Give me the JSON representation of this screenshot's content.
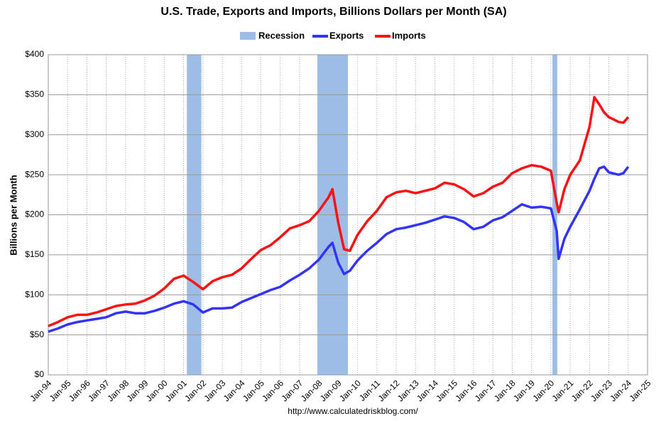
{
  "chart_data": {
    "type": "line",
    "title": "U.S. Trade, Exports and Imports, Billions Dollars per Month (SA)",
    "y_label": "Billions per Month",
    "source": "http://www.calculatedriskblog.com/",
    "recessions": {
      "name": "Recession",
      "color": "#9dbde6",
      "periods": [
        [
          2001.17,
          2001.92
        ],
        [
          2007.92,
          2009.5
        ],
        [
          2020.08,
          2020.33
        ]
      ]
    },
    "x": [
      1994.0,
      1994.5,
      1995.0,
      1995.5,
      1996.0,
      1996.5,
      1997.0,
      1997.5,
      1998.0,
      1998.5,
      1999.0,
      1999.5,
      2000.0,
      2000.5,
      2001.0,
      2001.5,
      2002.0,
      2002.5,
      2003.0,
      2003.5,
      2004.0,
      2004.5,
      2005.0,
      2005.5,
      2006.0,
      2006.5,
      2007.0,
      2007.5,
      2008.0,
      2008.5,
      2008.7,
      2009.0,
      2009.3,
      2009.6,
      2010.0,
      2010.5,
      2011.0,
      2011.5,
      2012.0,
      2012.5,
      2013.0,
      2013.5,
      2014.0,
      2014.5,
      2015.0,
      2015.5,
      2016.0,
      2016.5,
      2017.0,
      2017.5,
      2018.0,
      2018.5,
      2019.0,
      2019.5,
      2020.0,
      2020.3,
      2020.4,
      2020.7,
      2021.0,
      2021.5,
      2022.0,
      2022.25,
      2022.5,
      2022.75,
      2023.0,
      2023.5,
      2023.75,
      2024.0
    ],
    "series": [
      {
        "name": "Exports",
        "color": "#3333ff",
        "values": [
          54,
          58,
          63,
          66,
          68,
          70,
          72,
          77,
          79,
          77,
          77,
          80,
          84,
          89,
          92,
          88,
          78,
          83,
          83,
          84,
          91,
          96,
          101,
          106,
          110,
          118,
          125,
          133,
          144,
          160,
          165,
          140,
          126,
          130,
          143,
          155,
          165,
          176,
          182,
          184,
          187,
          190,
          194,
          198,
          196,
          191,
          182,
          185,
          193,
          197,
          205,
          213,
          209,
          210,
          208,
          180,
          145,
          170,
          185,
          207,
          230,
          245,
          258,
          260,
          253,
          250,
          252,
          260
        ]
      },
      {
        "name": "Imports",
        "color": "#ff1111",
        "values": [
          61,
          66,
          72,
          75,
          75,
          78,
          82,
          86,
          88,
          89,
          93,
          99,
          108,
          120,
          124,
          116,
          107,
          117,
          122,
          125,
          133,
          145,
          156,
          162,
          172,
          183,
          187,
          192,
          205,
          222,
          232,
          190,
          157,
          155,
          175,
          192,
          205,
          222,
          228,
          230,
          227,
          230,
          233,
          240,
          238,
          232,
          223,
          227,
          235,
          240,
          252,
          258,
          262,
          260,
          255,
          215,
          203,
          232,
          250,
          268,
          310,
          347,
          338,
          328,
          322,
          316,
          315,
          322
        ]
      }
    ],
    "xlim": [
      1994,
      2025
    ],
    "xticks": [
      {
        "value": 1994,
        "label": "Jan-94"
      },
      {
        "value": 1995,
        "label": "Jan-95"
      },
      {
        "value": 1996,
        "label": "Jan-96"
      },
      {
        "value": 1997,
        "label": "Jan-97"
      },
      {
        "value": 1998,
        "label": "Jan-98"
      },
      {
        "value": 1999,
        "label": "Jan-99"
      },
      {
        "value": 2000,
        "label": "Jan-00"
      },
      {
        "value": 2001,
        "label": "Jan-01"
      },
      {
        "value": 2002,
        "label": "Jan-02"
      },
      {
        "value": 2003,
        "label": "Jan-03"
      },
      {
        "value": 2004,
        "label": "Jan-04"
      },
      {
        "value": 2005,
        "label": "Jan-05"
      },
      {
        "value": 2006,
        "label": "Jan-06"
      },
      {
        "value": 2007,
        "label": "Jan-07"
      },
      {
        "value": 2008,
        "label": "Jan-08"
      },
      {
        "value": 2009,
        "label": "Jan-09"
      },
      {
        "value": 2010,
        "label": "Jan-10"
      },
      {
        "value": 2011,
        "label": "Jan-11"
      },
      {
        "value": 2012,
        "label": "Jan-12"
      },
      {
        "value": 2013,
        "label": "Jan-13"
      },
      {
        "value": 2014,
        "label": "Jan-14"
      },
      {
        "value": 2015,
        "label": "Jan-15"
      },
      {
        "value": 2016,
        "label": "Jan-16"
      },
      {
        "value": 2017,
        "label": "Jan-17"
      },
      {
        "value": 2018,
        "label": "Jan-18"
      },
      {
        "value": 2019,
        "label": "Jan-19"
      },
      {
        "value": 2020,
        "label": "Jan-20"
      },
      {
        "value": 2021,
        "label": "Jan-21"
      },
      {
        "value": 2022,
        "label": "Jan-22"
      },
      {
        "value": 2023,
        "label": "Jan-23"
      },
      {
        "value": 2024,
        "label": "Jan-24"
      },
      {
        "value": 2025,
        "label": "Jan-25"
      }
    ],
    "ylim": [
      0,
      400
    ],
    "yticks": [
      {
        "value": 0,
        "label": "$0"
      },
      {
        "value": 50,
        "label": "$50"
      },
      {
        "value": 100,
        "label": "$100"
      },
      {
        "value": 150,
        "label": "$150"
      },
      {
        "value": 200,
        "label": "$200"
      },
      {
        "value": 250,
        "label": "$250"
      },
      {
        "value": 300,
        "label": "$300"
      },
      {
        "value": 350,
        "label": "$350"
      },
      {
        "value": 400,
        "label": "$400"
      }
    ],
    "grid": true
  }
}
